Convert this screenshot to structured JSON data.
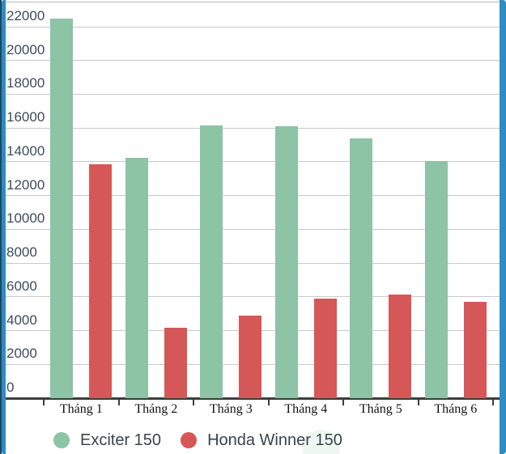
{
  "chart_data": {
    "type": "bar",
    "title": "",
    "xlabel": "",
    "ylabel": "",
    "categories": [
      "Tháng 1",
      "Tháng 2",
      "Tháng 3",
      "Tháng 4",
      "Tháng 5",
      "Tháng 6"
    ],
    "series": [
      {
        "name": "Exciter 150",
        "color": "#8cc4a5",
        "values": [
          22500,
          14250,
          16150,
          16100,
          15400,
          14050
        ]
      },
      {
        "name": "Honda Winner 150",
        "color": "#d65757",
        "values": [
          13850,
          4180,
          4870,
          5880,
          6150,
          5700
        ]
      }
    ],
    "ylim": [
      0,
      22000
    ],
    "ytick_step": 2000,
    "ytick_labels": [
      "0",
      "2000",
      "4000",
      "6000",
      "8000",
      "10000",
      "12000",
      "14000",
      "16000",
      "18000",
      "20000",
      "22000"
    ],
    "grid": true,
    "legend_position": "bottom"
  },
  "legend": {
    "items": [
      {
        "label": "Exciter 150",
        "color": "#8cc4a5"
      },
      {
        "label": "Honda Winner 150",
        "color": "#d65757"
      }
    ]
  },
  "colors": {
    "bar_green": "#8cc4a5",
    "bar_red": "#d65757",
    "gridline": "#c9c9c9",
    "axis": "#3d3d3d",
    "y_tick_text": "#3d4b5c",
    "x_tick_text": "#141414",
    "legend_text": "#3a434d",
    "border_blue": "#2b8dc5",
    "border_dark": "#24455d"
  }
}
